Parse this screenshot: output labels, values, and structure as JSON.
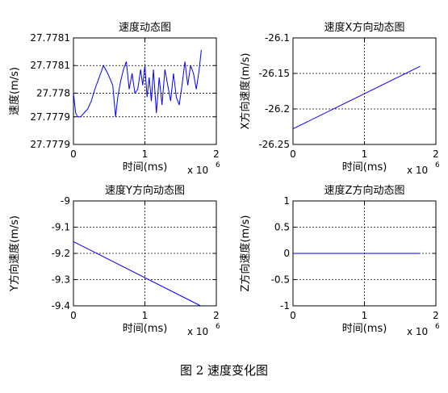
{
  "caption": "图 2  速度变化图",
  "chart_data": [
    {
      "type": "line",
      "title": "速度动态图",
      "xlabel": "时间(ms)",
      "ylabel": "速度(m/s)",
      "x_multiplier": "x 10",
      "x_exponent": "6",
      "xlim": [
        0,
        2
      ],
      "ylim": [
        27.77785,
        27.77812
      ],
      "xticks": [
        0,
        1,
        2
      ],
      "xtick_labels": [
        "0",
        "1",
        "2"
      ],
      "yticks": [
        27.77785,
        27.77792,
        27.77798,
        27.77805,
        27.77812
      ],
      "ytick_labels": [
        "27.7779",
        "27.7779",
        "27.778",
        "27.7781",
        "27.7781"
      ],
      "grid": true,
      "line_color": "#0000ff",
      "series": [
        {
          "x": [
            0.0,
            0.03,
            0.06,
            0.1,
            0.15,
            0.2,
            0.25,
            0.3,
            0.36,
            0.42,
            0.48,
            0.55,
            0.59,
            0.62,
            0.66,
            0.7,
            0.74,
            0.78,
            0.82,
            0.86,
            0.9,
            0.94,
            0.97,
            1.0,
            1.03,
            1.06,
            1.09,
            1.12,
            1.16,
            1.2,
            1.24,
            1.28,
            1.32,
            1.36,
            1.4,
            1.44,
            1.48,
            1.52,
            1.56,
            1.6,
            1.64,
            1.68,
            1.72,
            1.76,
            1.79
          ],
          "y": [
            27.77798,
            27.77793,
            27.77792,
            27.77792,
            27.77793,
            27.77794,
            27.77796,
            27.77799,
            27.77802,
            27.77805,
            27.77803,
            27.778,
            27.77792,
            27.77797,
            27.77801,
            27.77804,
            27.77806,
            27.77799,
            27.77803,
            27.77798,
            27.77799,
            27.77804,
            27.778,
            27.77805,
            27.77797,
            27.77802,
            27.77796,
            27.77804,
            27.77793,
            27.77802,
            27.77795,
            27.77804,
            27.778,
            27.77796,
            27.77803,
            27.77797,
            27.77795,
            27.778,
            27.77806,
            27.778,
            27.77805,
            27.77803,
            27.77799,
            27.77804,
            27.77809
          ]
        }
      ]
    },
    {
      "type": "line",
      "title": "速度X方向动态图",
      "xlabel": "时间(ms)",
      "ylabel": "X方向速度(m/s)",
      "x_multiplier": "x 10",
      "x_exponent": "6",
      "xlim": [
        0,
        2
      ],
      "ylim": [
        -26.25,
        -26.1
      ],
      "xticks": [
        0,
        1,
        2
      ],
      "xtick_labels": [
        "0",
        "1",
        "2"
      ],
      "yticks": [
        -26.25,
        -26.2,
        -26.15,
        -26.1
      ],
      "ytick_labels": [
        "-26.25",
        "-26.2",
        "-26.15",
        "-26.1"
      ],
      "grid": true,
      "line_color": "#0000ff",
      "series": [
        {
          "x": [
            0,
            1.78
          ],
          "y": [
            -26.228,
            -26.14
          ]
        }
      ]
    },
    {
      "type": "line",
      "title": "速度Y方向动态图",
      "xlabel": "时间(ms)",
      "ylabel": "Y方向速度(m/s)",
      "x_multiplier": "x 10",
      "x_exponent": "6",
      "xlim": [
        0,
        2
      ],
      "ylim": [
        -9.4,
        -9.0
      ],
      "xticks": [
        0,
        1,
        2
      ],
      "xtick_labels": [
        "0",
        "1",
        "2"
      ],
      "yticks": [
        -9.4,
        -9.3,
        -9.2,
        -9.1,
        -9.0
      ],
      "ytick_labels": [
        "-9.4",
        "-9.3",
        "-9.2",
        "-9.1",
        "-9"
      ],
      "grid": true,
      "line_color": "#0000ff",
      "series": [
        {
          "x": [
            0,
            1.78
          ],
          "y": [
            -9.155,
            -9.4
          ]
        }
      ]
    },
    {
      "type": "line",
      "title": "速度Z方向动态图",
      "xlabel": "时间(ms)",
      "ylabel": "Z方向速度(m/s)",
      "x_multiplier": "x 10",
      "x_exponent": "6",
      "xlim": [
        0,
        2
      ],
      "ylim": [
        -1,
        1
      ],
      "xticks": [
        0,
        1,
        2
      ],
      "xtick_labels": [
        "0",
        "1",
        "2"
      ],
      "yticks": [
        -1,
        -0.5,
        0,
        0.5,
        1
      ],
      "ytick_labels": [
        "-1",
        "-0.5",
        "0",
        "0.5",
        "1"
      ],
      "grid": true,
      "line_color": "#0000ff",
      "series": [
        {
          "x": [
            0,
            1.78
          ],
          "y": [
            0,
            0
          ]
        }
      ]
    }
  ]
}
